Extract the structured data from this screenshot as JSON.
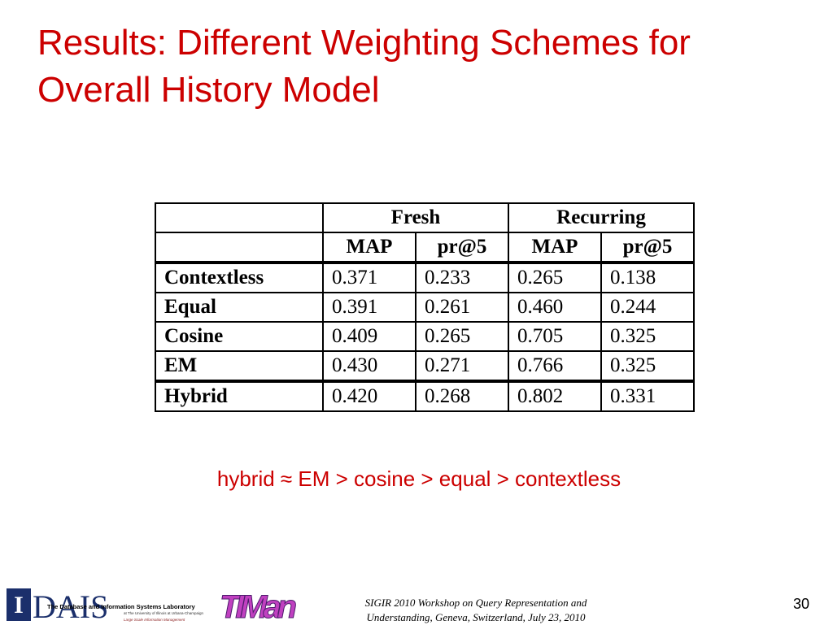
{
  "header": {
    "title": "Results: Different Weighting Schemes for Overall History Model"
  },
  "table": {
    "groups": [
      "Fresh",
      "Recurring"
    ],
    "columns": [
      "MAP",
      "pr@5",
      "MAP",
      "pr@5"
    ],
    "rows": [
      [
        "Contextless",
        "0.371",
        "0.233",
        "0.265",
        "0.138"
      ],
      [
        "Equal",
        "0.391",
        "0.261",
        "0.460",
        "0.244"
      ],
      [
        "Cosine",
        "0.409",
        "0.265",
        "0.705",
        "0.325"
      ],
      [
        "EM",
        "0.430",
        "0.271",
        "0.766",
        "0.325"
      ],
      [
        "Hybrid",
        "0.420",
        "0.268",
        "0.802",
        "0.331"
      ]
    ]
  },
  "note": "hybrid ≈ EM > cosine > equal > contextless",
  "footer": {
    "logo_left": {
      "mark": "I",
      "name": "DAIS",
      "lab": "The Database and Information Systems Laboratory",
      "affiliation": "at The University of Illinois at Urbana-Champaign",
      "group": "Large Scale Information Management"
    },
    "logo_right": "TIMan",
    "citation": [
      "SIGIR 2010 Workshop on Query Representation and",
      "Understanding, Geneva, Switzerland, July 23, 2010"
    ],
    "page_number": "30"
  }
}
